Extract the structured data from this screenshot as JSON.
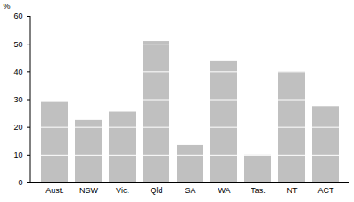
{
  "chart_data": {
    "type": "bar",
    "categories": [
      "Aust.",
      "NSW",
      "Vic.",
      "Qld",
      "SA",
      "WA",
      "Tas.",
      "NT",
      "ACT"
    ],
    "values": [
      29,
      22.5,
      25.5,
      51,
      13.5,
      44,
      10,
      40,
      27.5
    ],
    "color": "#c0c0c0",
    "ylabel": "%",
    "ylim": [
      0,
      60
    ],
    "yticks": [
      0,
      10,
      20,
      30,
      40,
      50,
      60
    ],
    "grid": true
  }
}
